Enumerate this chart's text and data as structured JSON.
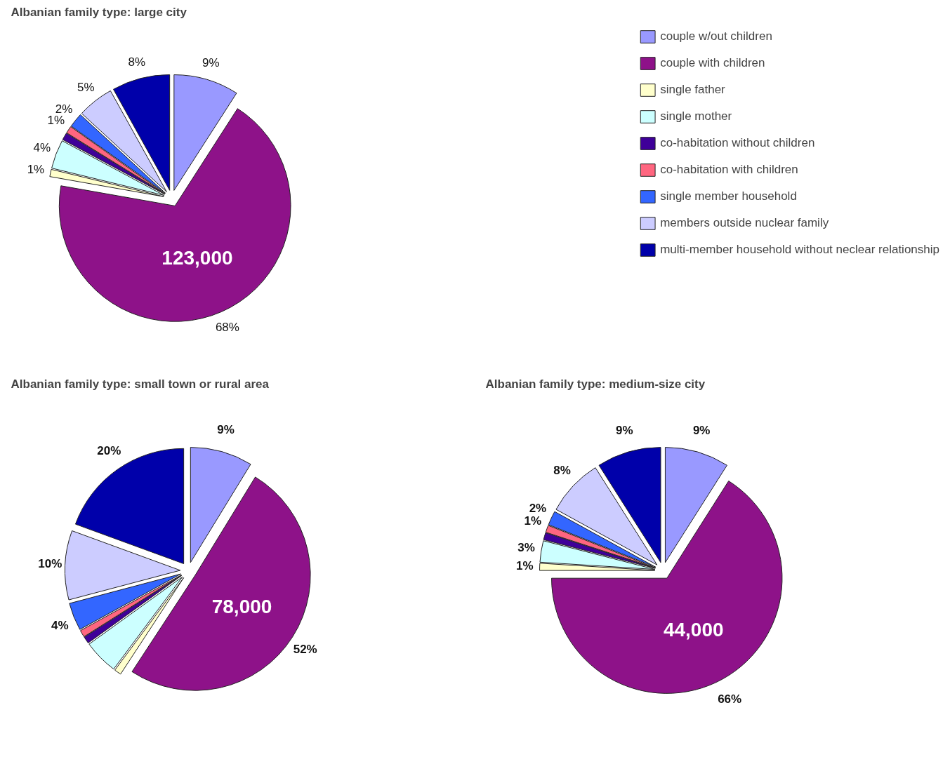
{
  "chart_data": [
    {
      "type": "pie",
      "title": "Albanian family type: large city",
      "legend": "right",
      "categories": [
        "couple w/out children",
        "couple with children",
        "single father",
        "single mother",
        "co-habitation without children",
        "co-habitation with children",
        "single member household",
        "members outside nuclear family",
        "multi-member household without neclear relationship"
      ],
      "values": [
        9,
        68,
        1,
        4,
        1,
        1,
        2,
        5,
        8
      ],
      "value_labels": [
        "9%",
        "68%",
        "1%",
        "4%",
        null,
        "1%",
        "2%",
        "5%",
        "8%"
      ],
      "colors": [
        "#9999ff",
        "#8e1289",
        "#ffffcc",
        "#ccffff",
        "#3f0099",
        "#ff6680",
        "#3366ff",
        "#ccccff",
        "#0000aa"
      ],
      "annotations": [
        "123,000"
      ]
    },
    {
      "type": "pie",
      "title": "Albanian family type: small town or rural area",
      "categories": [
        null,
        null,
        null,
        null,
        null,
        null,
        null,
        null,
        null
      ],
      "values": [
        9,
        52,
        1,
        5,
        1,
        1,
        4,
        10,
        20
      ],
      "value_labels": [
        "9%",
        "52%",
        null,
        null,
        null,
        null,
        "4%",
        "10%",
        "20%"
      ],
      "colors": [
        "#9999ff",
        "#8e1289",
        "#ffffcc",
        "#ccffff",
        "#3f0099",
        "#ff6680",
        "#3366ff",
        "#ccccff",
        "#0000aa"
      ],
      "annotations": [
        "78,000"
      ]
    },
    {
      "type": "pie",
      "title": "Albanian family type: medium-size city",
      "categories": [
        null,
        null,
        null,
        null,
        null,
        null,
        null,
        null,
        null
      ],
      "values": [
        9,
        66,
        1,
        3,
        1,
        1,
        2,
        8,
        9
      ],
      "value_labels": [
        "9%",
        "66%",
        "1%",
        "3%",
        null,
        "1%",
        "2%",
        "8%",
        "9%"
      ],
      "colors": [
        "#9999ff",
        "#8e1289",
        "#ffffcc",
        "#ccffff",
        "#3f0099",
        "#ff6680",
        "#3366ff",
        "#ccccff",
        "#0000aa"
      ],
      "annotations": [
        "44,000"
      ]
    }
  ]
}
